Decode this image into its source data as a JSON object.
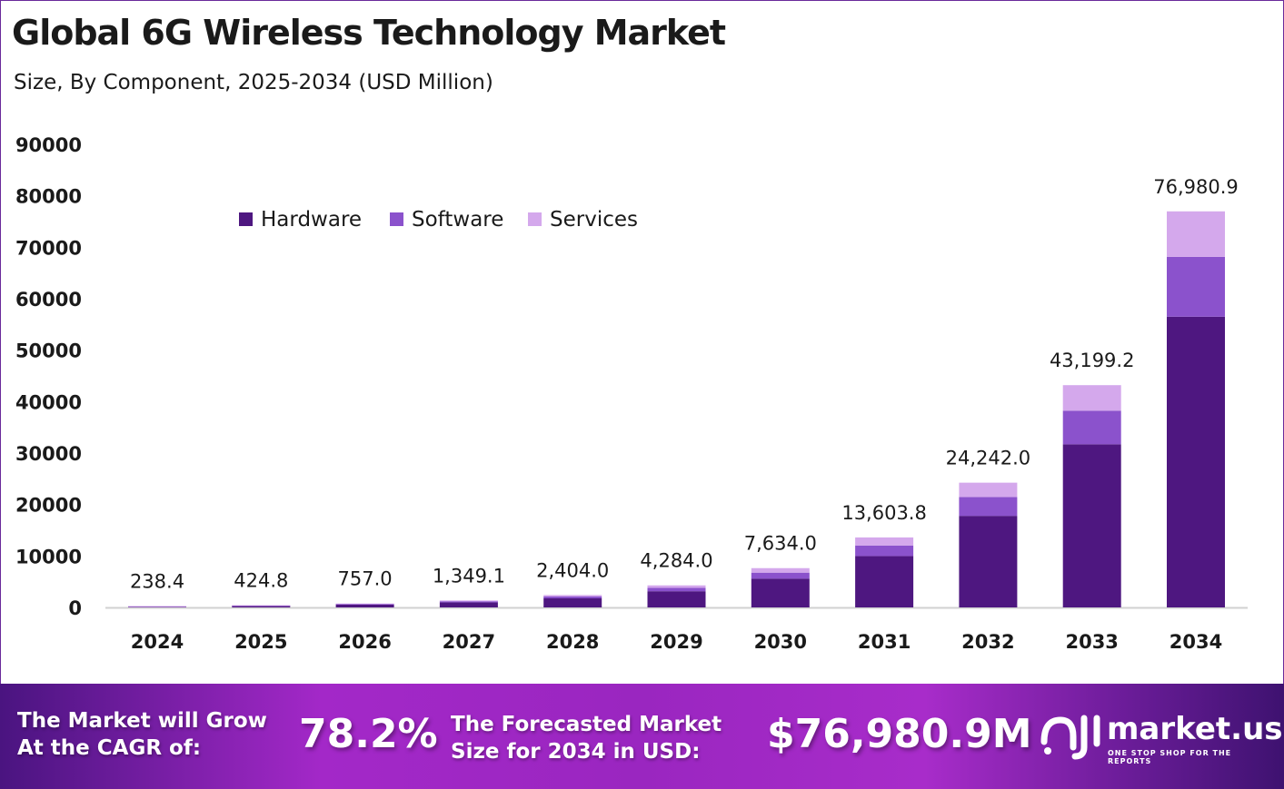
{
  "chart_data": {
    "type": "bar",
    "stacked": true,
    "title": "Global 6G Wireless Technology Market",
    "subtitle": "Size, By Component, 2025-2034 (USD Million)",
    "categories": [
      "2024",
      "2025",
      "2026",
      "2027",
      "2028",
      "2029",
      "2030",
      "2031",
      "2032",
      "2033",
      "2034"
    ],
    "series": [
      {
        "name": "Hardware",
        "color": "#4e1780",
        "values": [
          175.0,
          311.8,
          555.6,
          990.2,
          1764.5,
          3144.5,
          5603.4,
          9985.2,
          17793.6,
          31708.2,
          56504.0
        ]
      },
      {
        "name": "Software",
        "color": "#8b52cc",
        "values": [
          36.0,
          64.1,
          114.3,
          203.7,
          363.0,
          646.9,
          1152.7,
          2054.2,
          3660.5,
          6523.1,
          11624.1
        ]
      },
      {
        "name": "Services",
        "color": "#d4a8ec",
        "values": [
          27.4,
          48.9,
          87.1,
          155.2,
          276.5,
          492.6,
          877.9,
          1564.4,
          2787.9,
          4967.9,
          8852.8
        ]
      }
    ],
    "totals": [
      238.4,
      424.8,
      757.0,
      1349.1,
      2404.0,
      4284.0,
      7634.0,
      13603.8,
      24242.0,
      43199.2,
      76980.9
    ],
    "total_labels": [
      "238.4",
      "424.8",
      "757.0",
      "1,349.1",
      "2,404.0",
      "4,284.0",
      "7,634.0",
      "13,603.8",
      "24,242.0",
      "43,199.2",
      "76,980.9"
    ],
    "ylim": [
      0,
      90000
    ],
    "yticks": [
      "0",
      "10000",
      "20000",
      "30000",
      "40000",
      "50000",
      "60000",
      "70000",
      "80000",
      "90000"
    ],
    "grid": false,
    "legend_position": "top-left"
  },
  "banner": {
    "cagr_label": [
      "The Market will Grow",
      "At the CAGR of:"
    ],
    "cagr_value": "78.2%",
    "forecast_label": [
      "The Forecasted Market",
      "Size for 2034 in USD:"
    ],
    "forecast_value": "$76,980.9M",
    "logo_name": "market.us",
    "logo_tagline": "ONE STOP SHOP FOR THE REPORTS"
  }
}
